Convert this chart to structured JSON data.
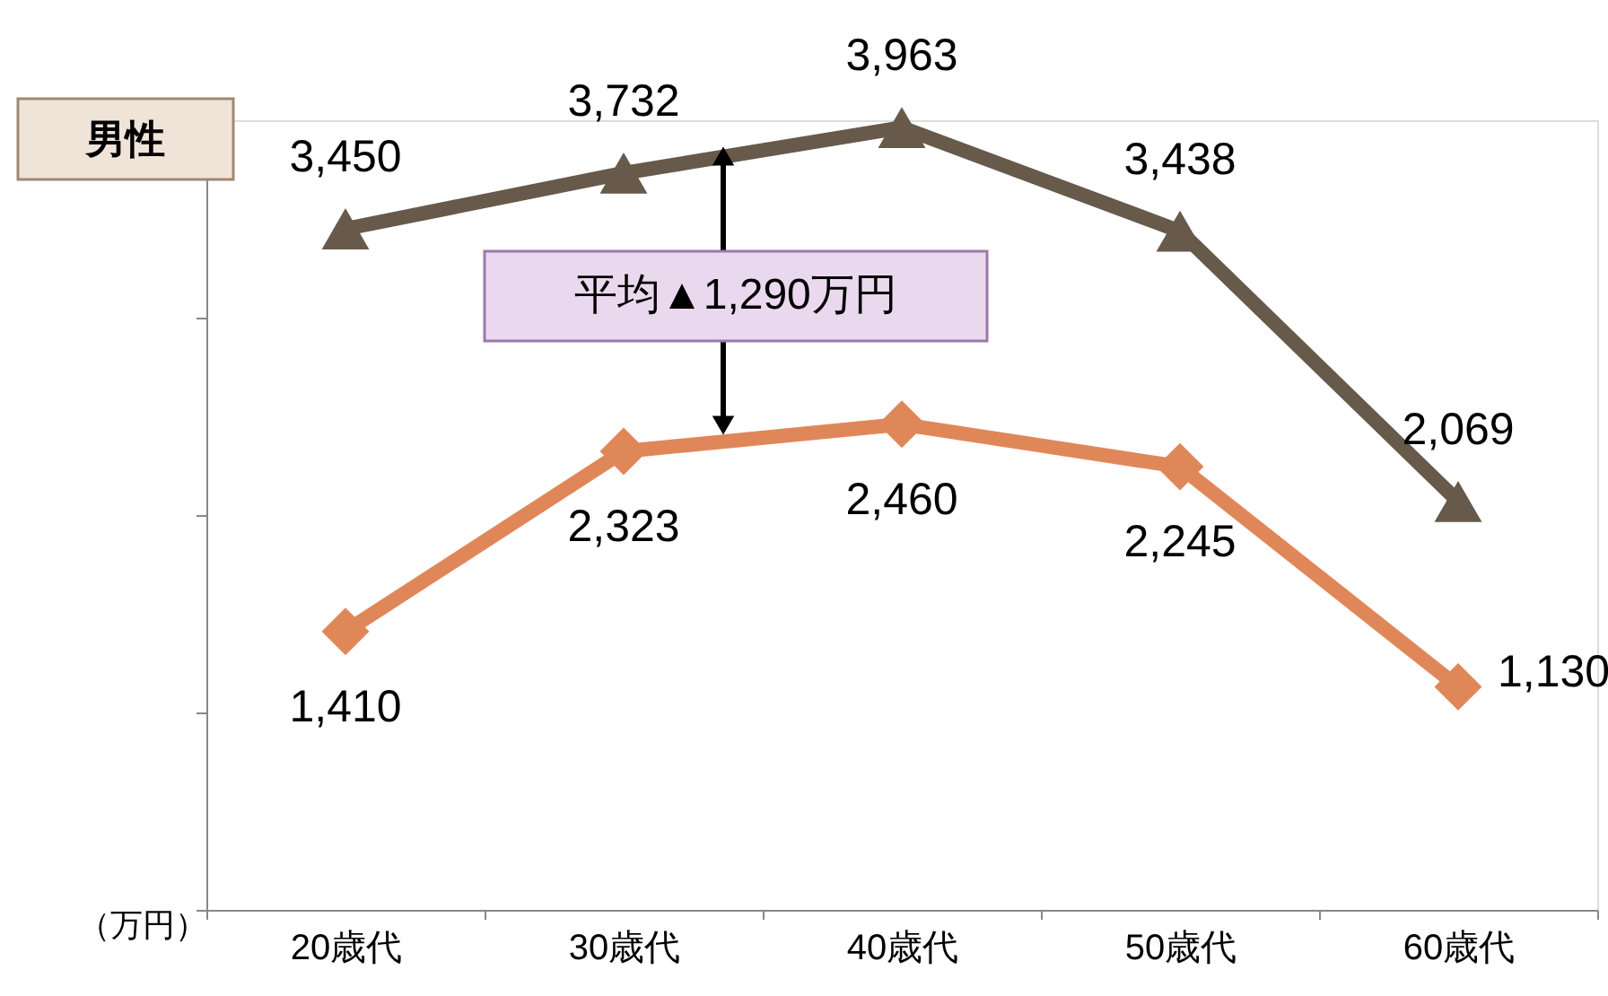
{
  "chart_data": {
    "type": "line",
    "title": "男性",
    "ylabel": "（万円）",
    "categories": [
      "20歳代",
      "30歳代",
      "40歳代",
      "50歳代",
      "60歳代"
    ],
    "series": [
      {
        "color": "#675a4a",
        "marker": "triangle",
        "values": [
          3450,
          3732,
          3963,
          3438,
          2069
        ],
        "value_labels": [
          "3,450",
          "3,732",
          "3,963",
          "3,438",
          "2,069"
        ]
      },
      {
        "color": "#e0875a",
        "marker": "diamond",
        "values": [
          1410,
          2323,
          2460,
          2245,
          1130
        ],
        "value_labels": [
          "1,410",
          "2,323",
          "2,460",
          "2,245",
          "1,130"
        ]
      }
    ],
    "tick_labels": "x",
    "grid": false,
    "legend": false,
    "annotations": [
      "平均▲1,290万円"
    ]
  }
}
